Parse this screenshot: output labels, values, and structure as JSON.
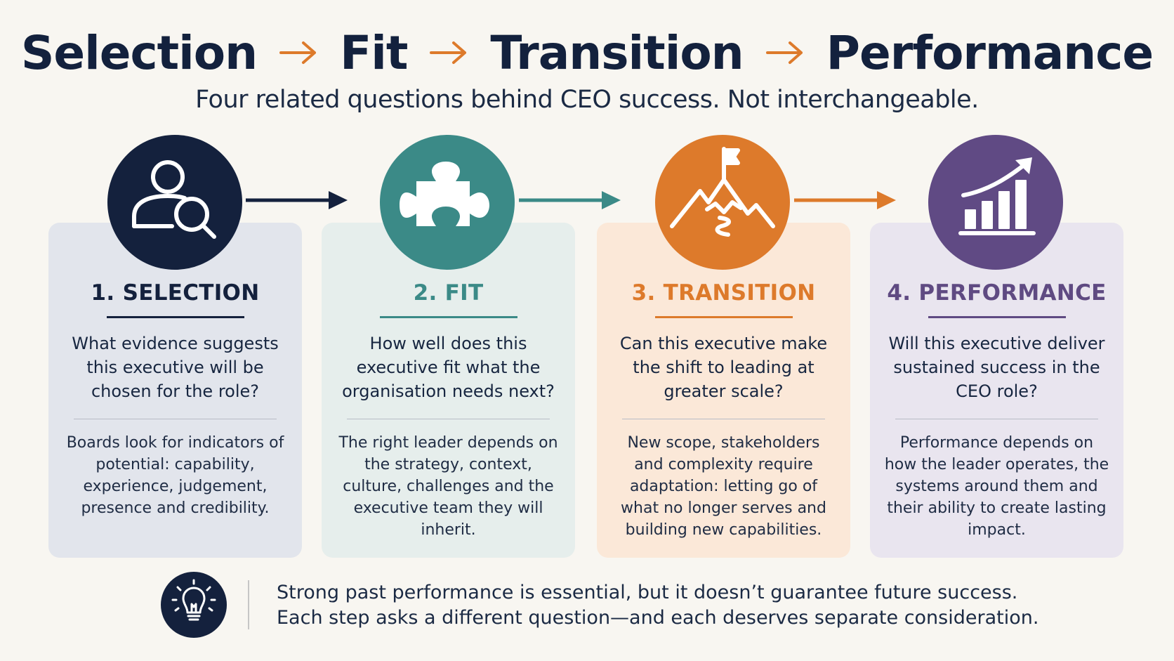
{
  "header": {
    "title_words": [
      "Selection",
      "Fit",
      "Transition",
      "Performance"
    ],
    "subtitle": "Four related questions behind CEO success. Not interchangeable."
  },
  "steps": [
    {
      "heading": "1. SELECTION",
      "icon": "person-search-icon",
      "color": "#14213d",
      "question": "What evidence suggests this executive will be chosen for the role?",
      "body": "Boards look for indicators of potential: capability, experience, judgement, presence and credibility."
    },
    {
      "heading": "2. FIT",
      "icon": "puzzle-piece-icon",
      "color": "#3b8a87",
      "question": "How well does this executive fit what the organisation needs next?",
      "body": "The right leader depends on the strategy, context, culture, challenges and the executive team they will inherit."
    },
    {
      "heading": "3. TRANSITION",
      "icon": "mountain-flag-icon",
      "color": "#dd7a2b",
      "question": "Can this executive make the shift to leading at greater scale?",
      "body": "New scope, stakeholders and complexity require adaptation: letting go of what no longer serves and building new capabilities."
    },
    {
      "heading": "4. PERFORMANCE",
      "icon": "bar-chart-growth-icon",
      "color": "#5f4a82",
      "question": "Will this executive deliver sustained success in the CEO role?",
      "body": "Performance depends on how the leader operates, the systems around them and their ability to create lasting impact."
    }
  ],
  "footer": {
    "icon": "lightbulb-icon",
    "line1": "Strong past performance is essential, but it doesn’t guarantee future success.",
    "line2": "Each step asks a different question—and each deserves separate consideration."
  }
}
